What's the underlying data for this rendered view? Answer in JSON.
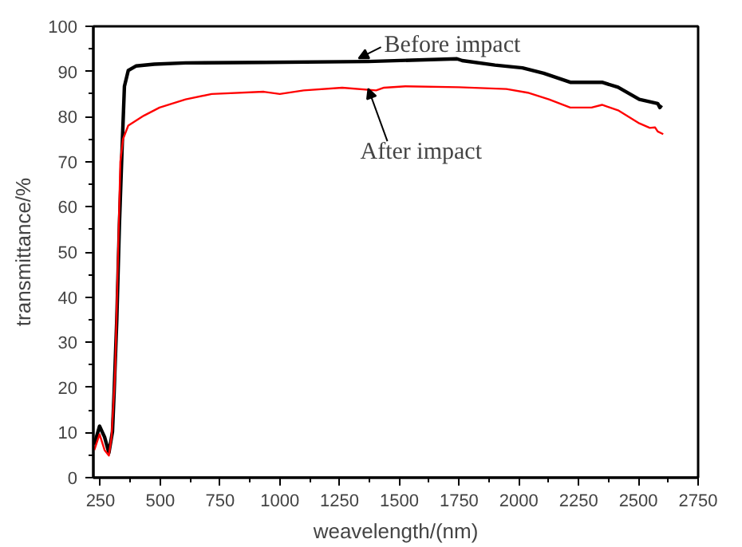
{
  "chart_data": {
    "type": "line",
    "xlabel": "weavelength/(nm)",
    "ylabel": "transmittance/%",
    "xlim": [
      220,
      2750
    ],
    "xticks": [
      250,
      500,
      750,
      1000,
      1250,
      1500,
      1750,
      2000,
      2250,
      2500,
      2750
    ],
    "ylim": [
      0,
      100
    ],
    "yticks": [
      0,
      10,
      20,
      30,
      40,
      50,
      60,
      70,
      80,
      90,
      100
    ],
    "grid": false,
    "marker": "none",
    "line_style": "solid",
    "series": [
      {
        "color": "#000000",
        "x": [
          224,
          246,
          267,
          285,
          300,
          307,
          318,
          329,
          340,
          350,
          366,
          398,
          475,
          606,
          933,
          1370,
          1741,
          1763,
          1900,
          2015,
          2104,
          2215,
          2348,
          2415,
          2504,
          2581,
          2590,
          2597
        ],
        "values": [
          7.3,
          11.4,
          9,
          5.5,
          10.2,
          19,
          35,
          56,
          72.6,
          86.7,
          90.2,
          91.2,
          91.6,
          91.9,
          92,
          92.2,
          92.8,
          92.4,
          91.4,
          90.8,
          89.6,
          87.6,
          87.6,
          86.5,
          83.8,
          82.9,
          82,
          82.5
        ]
      },
      {
        "color": "#ff0000",
        "x": [
          224,
          246,
          267,
          285,
          296,
          311,
          322,
          333,
          344,
          366,
          431,
          497,
          606,
          715,
          933,
          1000,
          1100,
          1261,
          1403,
          1436,
          1525,
          1748,
          1948,
          2037,
          2126,
          2215,
          2304,
          2348,
          2415,
          2504,
          2548,
          2570,
          2581,
          2604
        ],
        "values": [
          6.1,
          9.6,
          6.1,
          4.9,
          9,
          23,
          46.7,
          70,
          75,
          78,
          80.2,
          82,
          83.8,
          85,
          85.5,
          85,
          85.8,
          86.4,
          85.8,
          86.4,
          86.7,
          86.5,
          86.1,
          85.3,
          83.8,
          82,
          82,
          82.6,
          81.4,
          78.5,
          77.5,
          77.6,
          76.7,
          76.1
        ]
      }
    ],
    "annotations": [
      {
        "text": "Before impact",
        "x": 1330,
        "y": 92.9
      },
      {
        "text": "After impact",
        "x": 1370,
        "y": 86.2
      }
    ]
  }
}
